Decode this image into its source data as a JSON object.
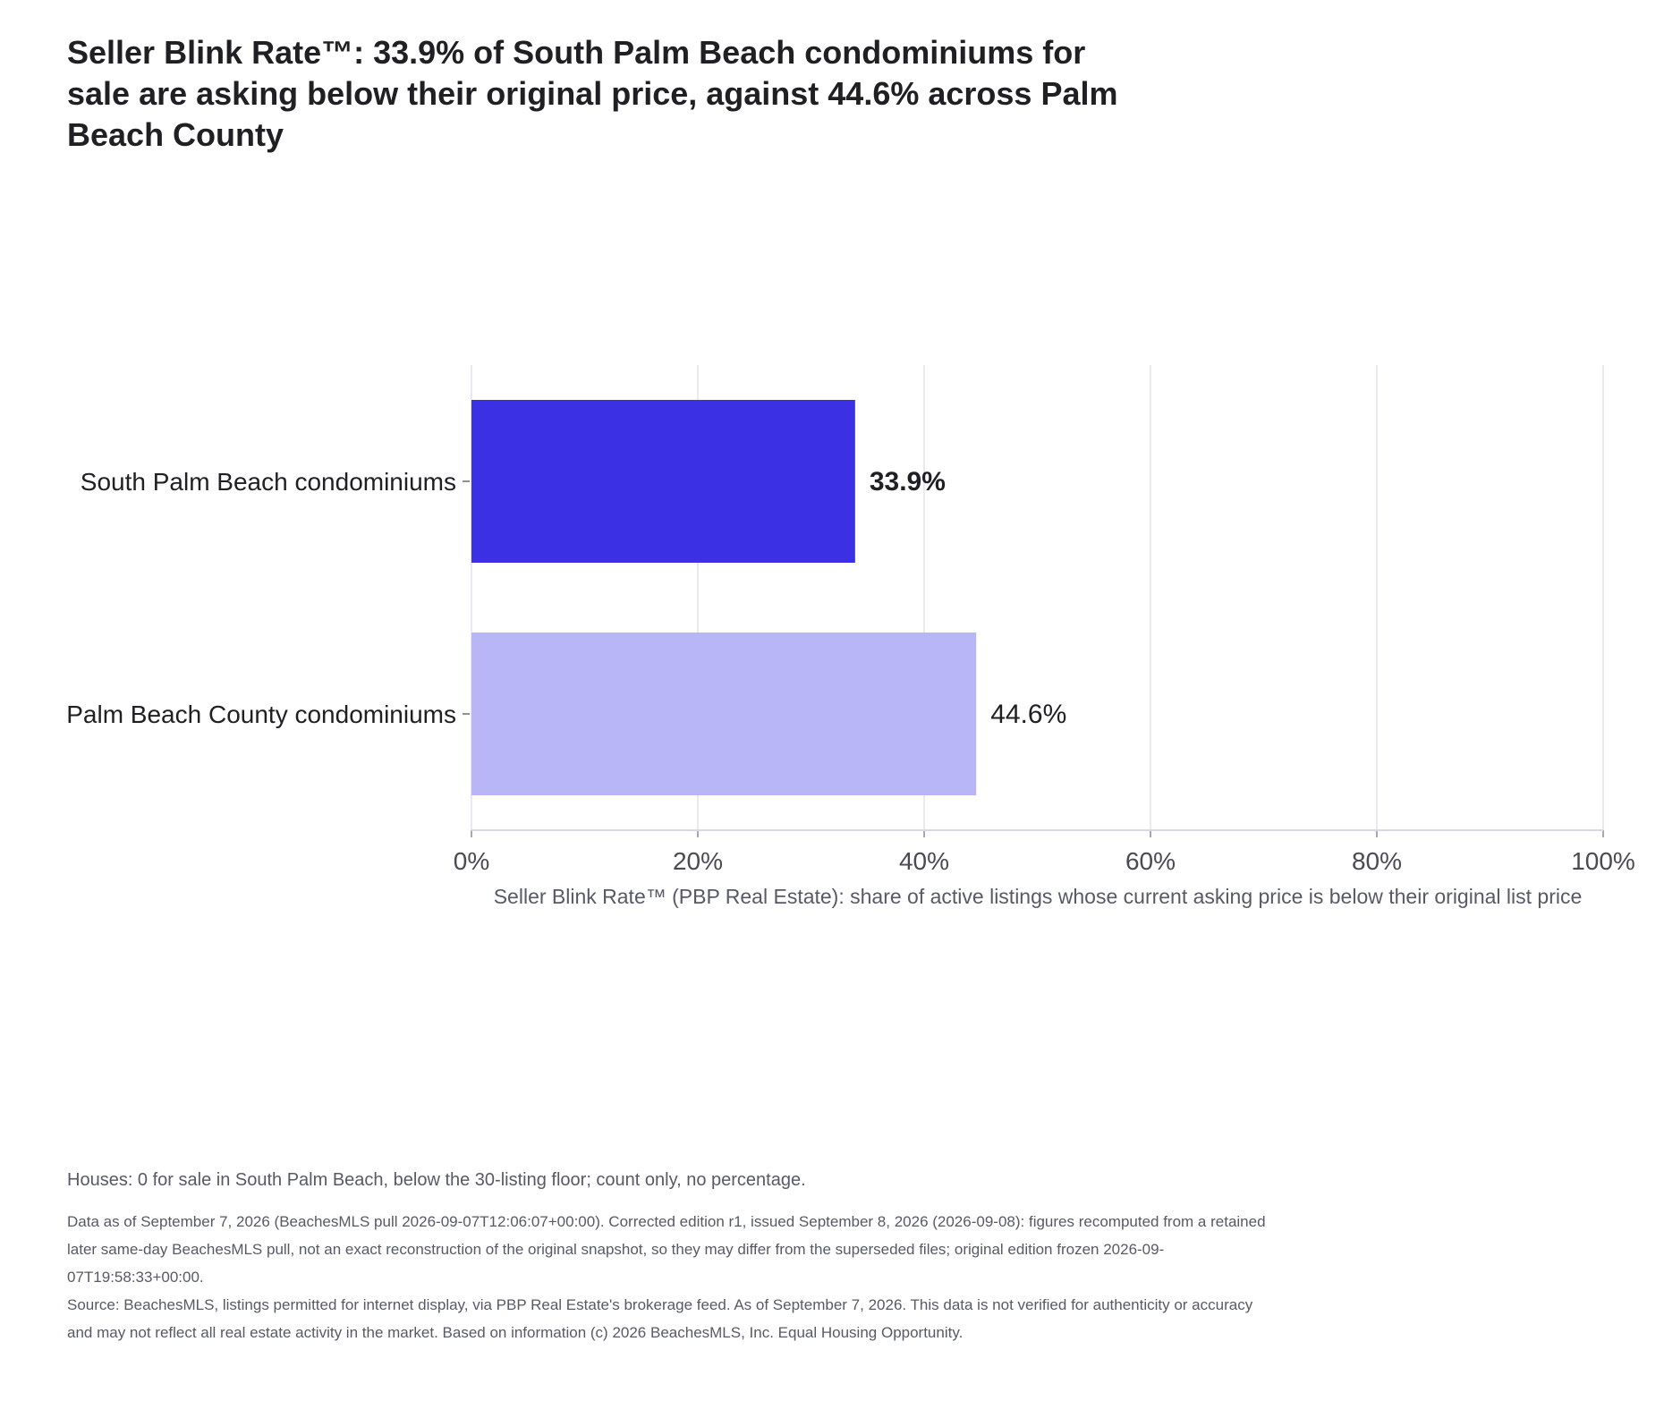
{
  "title": "Seller Blink Rate™: 33.9% of South Palm Beach condominiums for sale are asking below their original price, against 44.6% across Palm Beach County",
  "colors": {
    "primary_bar": "#3b30e3",
    "secondary_bar": "#b8b6f6",
    "grid": "#e2e2ef",
    "axis_text": "#4a4a52",
    "label_text": "#1f1f24"
  },
  "chart_data": {
    "type": "bar",
    "orientation": "horizontal",
    "categories": [
      "South Palm Beach condominiums",
      "Palm Beach County condominiums"
    ],
    "values": [
      33.9,
      44.6
    ],
    "value_labels": [
      "33.9%",
      "44.6%"
    ],
    "highlighted_category": "South Palm Beach condominiums",
    "xlabel": "Seller Blink Rate™ (PBP Real Estate): share of active listings whose current asking price is below their original list price",
    "ylabel": "",
    "xlim": [
      0,
      100
    ],
    "xticks": [
      0,
      20,
      40,
      60,
      80,
      100
    ],
    "xtick_labels": [
      "0%",
      "20%",
      "40%",
      "60%",
      "80%",
      "100%"
    ],
    "grid": true,
    "legend": "none"
  },
  "notes": {
    "houses": "Houses: 0 for sale in South Palm Beach, below the 30-listing floor; count only, no percentage.",
    "edition": "Data as of September 7, 2026 (BeachesMLS pull 2026-09-07T12:06:07+00:00). Corrected edition r1, issued September 8, 2026 (2026-09-08): figures recomputed from a retained later same-day BeachesMLS pull, not an exact reconstruction of the original snapshot, so they may differ from the superseded files; original edition frozen 2026-09-07T19:58:33+00:00.",
    "source": "Source: BeachesMLS, listings permitted for internet display, via PBP Real Estate's brokerage feed. As of September 7, 2026. This data is not verified for authenticity or accuracy and may not reflect all real estate activity in the market. Based on information (c) 2026 BeachesMLS, Inc. Equal Housing Opportunity."
  }
}
